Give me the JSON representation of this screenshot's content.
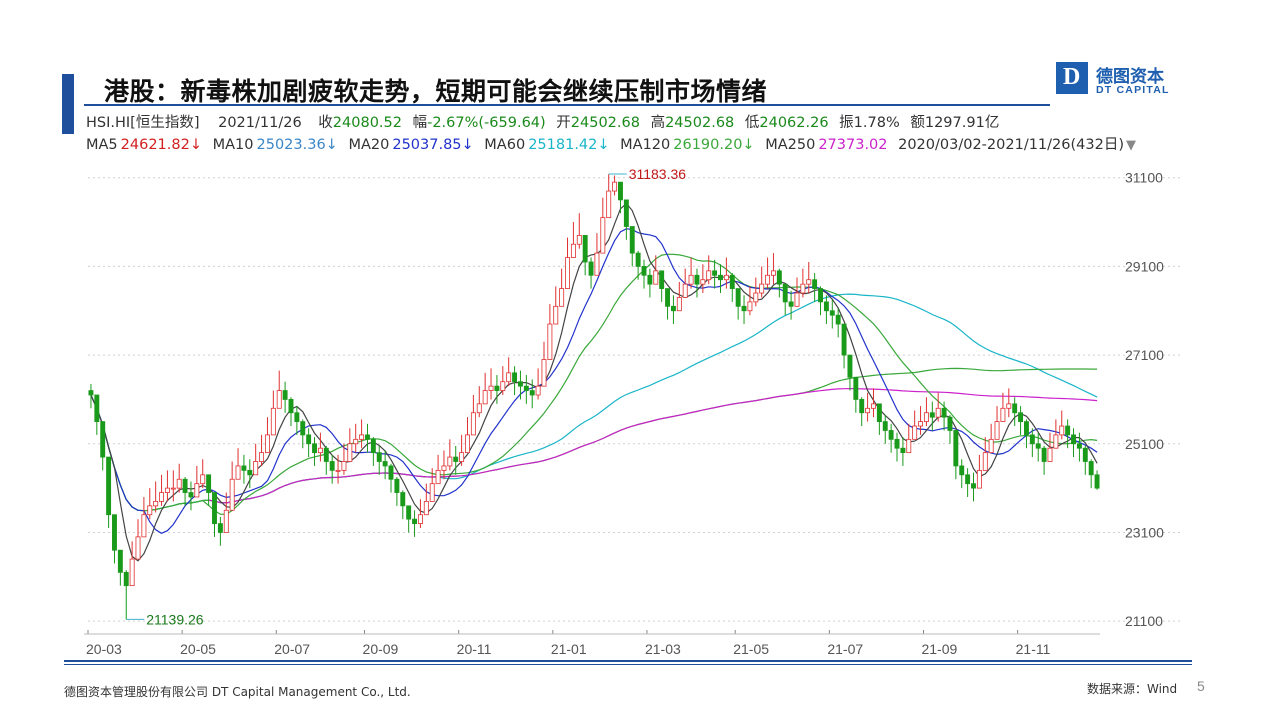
{
  "header": {
    "title": "港股：新毒株加剧疲软走势，短期可能会继续压制市场情绪",
    "logo_cn": "德图资本",
    "logo_en": "DT CAPITAL",
    "logo_letter": "D",
    "brand_color": "#1f4e9c"
  },
  "quote": {
    "symbol": "HSI.HI[恒生指数]",
    "date": "2021/11/26",
    "close_label": "收",
    "close": "24080.52",
    "change_label": "幅",
    "change": "-2.67%(-659.64)",
    "open_label": "开",
    "open": "24502.68",
    "high_label": "高",
    "high": "24502.68",
    "low_label": "低",
    "low": "24062.26",
    "amp_label": "振",
    "amp": "1.78%",
    "amount_label": "额",
    "amount": "1297.91亿"
  },
  "ma": {
    "ma5_label": "MA5",
    "ma5": "24621.82↓",
    "ma10_label": "MA10",
    "ma10": "25023.36↓",
    "ma20_label": "MA20",
    "ma20": "25037.85↓",
    "ma60_label": "MA60",
    "ma60": "25181.42↓",
    "ma120_label": "MA120",
    "ma120": "26190.20↓",
    "ma250_label": "MA250",
    "ma250": "27373.02",
    "range": "2020/03/02-2021/11/26(432日)",
    "range_arrow": "▼"
  },
  "footer": {
    "company": "德图资本管理股份有限公司  DT Capital Management  Co., Ltd.",
    "source": "数据来源：Wind",
    "page": "5"
  },
  "chart_data": {
    "type": "line",
    "ylim": [
      20900,
      31500
    ],
    "y_ticks": [
      "31100",
      "29100",
      "27100",
      "25100",
      "23100",
      "21100"
    ],
    "x_ticks": [
      "20-03",
      "20-05",
      "20-07",
      "20-09",
      "20-11",
      "21-01",
      "21-03",
      "21-05",
      "21-07",
      "21-09",
      "21-11"
    ],
    "annotations": [
      {
        "label": "31183.36",
        "x": "21-02",
        "y": 31183.36
      },
      {
        "label": "21139.26",
        "x": "20-03",
        "y": 21139.26
      }
    ],
    "colors": {
      "up": "#e03030",
      "down": "#1a9a1a",
      "ma5": "#444444",
      "ma10": "#2233cc",
      "ma20": "#3aa83a",
      "ma60": "#19b5c8",
      "ma120": "#3aa83a",
      "ma250": "#cc22cc"
    },
    "close": [
      26200,
      25600,
      24800,
      23500,
      22700,
      22200,
      21900,
      22500,
      23000,
      23500,
      23700,
      23800,
      24000,
      24100,
      24100,
      24300,
      24000,
      23900,
      24200,
      24400,
      24000,
      23300,
      23100,
      23600,
      24300,
      24600,
      24500,
      24400,
      24700,
      24900,
      25300,
      25900,
      26300,
      26100,
      25800,
      25600,
      25300,
      25100,
      24900,
      25000,
      24700,
      24500,
      24500,
      24700,
      25100,
      25200,
      25300,
      25200,
      24900,
      24700,
      24600,
      24300,
      24000,
      23700,
      23400,
      23300,
      23500,
      23800,
      24200,
      24500,
      24600,
      24800,
      24700,
      24900,
      25300,
      25800,
      26000,
      26300,
      26400,
      26300,
      26500,
      26700,
      26500,
      26400,
      26300,
      26200,
      26400,
      27000,
      27800,
      28200,
      28600,
      29300,
      29600,
      29800,
      29200,
      28900,
      29400,
      30200,
      30800,
      31000,
      30600,
      30000,
      29400,
      29100,
      28900,
      28700,
      29000,
      28600,
      28200,
      28100,
      28400,
      28700,
      28900,
      28700,
      28800,
      29000,
      28900,
      28800,
      28900,
      28600,
      28200,
      28100,
      28300,
      28500,
      28700,
      28900,
      29000,
      28700,
      28300,
      28200,
      28500,
      28700,
      28800,
      28600,
      28300,
      28100,
      28000,
      27800,
      27100,
      26600,
      26100,
      25800,
      25900,
      26000,
      25600,
      25400,
      25200,
      25000,
      24900,
      25200,
      25500,
      25600,
      25800,
      25700,
      25900,
      25700,
      25400,
      24600,
      24400,
      24200,
      24100,
      24500,
      24900,
      25200,
      25600,
      25900,
      26000,
      25800,
      25600,
      25300,
      25100,
      25000,
      24700,
      25000,
      25300,
      25500,
      25300,
      25100,
      25000,
      24700,
      24400,
      24100
    ],
    "high": [
      26450,
      25900,
      25100,
      23850,
      23150,
      22550,
      22250,
      22900,
      23400,
      23900,
      24100,
      24250,
      24400,
      24500,
      24500,
      24650,
      24350,
      24250,
      24600,
      24750,
      24400,
      23700,
      23450,
      24000,
      24700,
      25000,
      24850,
      24750,
      25100,
      25300,
      25700,
      26300,
      26750,
      26500,
      26150,
      25950,
      25650,
      25450,
      25250,
      25350,
      25050,
      24850,
      24850,
      25100,
      25450,
      25550,
      25650,
      25550,
      25250,
      25050,
      24950,
      24650,
      24350,
      24050,
      23700,
      23600,
      23850,
      24200,
      24550,
      24850,
      24950,
      25200,
      25050,
      25300,
      25700,
      26200,
      26400,
      26700,
      26800,
      26650,
      26850,
      27050,
      26850,
      26750,
      26650,
      26550,
      26800,
      27400,
      28250,
      28650,
      29050,
      29750,
      30100,
      30300,
      29650,
      29300,
      29850,
      30650,
      31183,
      31150,
      30950,
      30350,
      29750,
      29450,
      29250,
      29050,
      29350,
      29000,
      28550,
      28450,
      28750,
      29050,
      29300,
      29050,
      29150,
      29350,
      29250,
      29150,
      29300,
      28950,
      28550,
      28450,
      28650,
      28850,
      29100,
      29300,
      29400,
      29050,
      28650,
      28550,
      28850,
      29050,
      29200,
      28950,
      28650,
      28450,
      28350,
      28150,
      27500,
      27000,
      26500,
      26150,
      26250,
      26350,
      25950,
      25750,
      25550,
      25350,
      25250,
      25550,
      25850,
      25950,
      26150,
      26050,
      26250,
      26050,
      25750,
      24950,
      24750,
      24550,
      24450,
      24850,
      25250,
      25550,
      25950,
      26250,
      26350,
      26150,
      25950,
      25650,
      25450,
      25350,
      25050,
      25350,
      25650,
      25850,
      25650,
      25450,
      25350,
      25050,
      24750,
      24500
    ],
    "low": [
      25900,
      25300,
      24500,
      23200,
      22400,
      21900,
      21139,
      22200,
      22700,
      23200,
      23400,
      23550,
      23700,
      23800,
      23800,
      24000,
      23700,
      23600,
      23900,
      24100,
      23700,
      23000,
      22800,
      23300,
      24000,
      24300,
      24200,
      24100,
      24400,
      24600,
      25000,
      25600,
      26000,
      25800,
      25500,
      25300,
      25000,
      24800,
      24600,
      24700,
      24400,
      24200,
      24200,
      24400,
      24800,
      24900,
      25000,
      24900,
      24600,
      24400,
      24300,
      24000,
      23700,
      23400,
      23100,
      23000,
      23200,
      23500,
      23900,
      24200,
      24300,
      24500,
      24400,
      24600,
      25000,
      25500,
      25700,
      26000,
      26100,
      26000,
      26200,
      26400,
      26200,
      26100,
      26000,
      25900,
      26100,
      26700,
      27500,
      27900,
      28300,
      29000,
      29300,
      29500,
      28900,
      28600,
      29100,
      29900,
      30500,
      30700,
      30300,
      29700,
      29100,
      28800,
      28600,
      28400,
      28700,
      28300,
      27900,
      27800,
      28100,
      28400,
      28600,
      28400,
      28500,
      28700,
      28600,
      28500,
      28600,
      28300,
      27900,
      27800,
      28000,
      28200,
      28400,
      28600,
      28700,
      28400,
      28000,
      27900,
      28200,
      28400,
      28500,
      28300,
      28000,
      27800,
      27700,
      27500,
      26800,
      26300,
      25800,
      25500,
      25600,
      25700,
      25300,
      25100,
      24900,
      24700,
      24600,
      24900,
      25200,
      25300,
      25500,
      25400,
      25600,
      25400,
      25100,
      24300,
      24100,
      23900,
      23800,
      24200,
      24600,
      24900,
      25300,
      25600,
      25700,
      25500,
      25300,
      25000,
      24800,
      24700,
      24400,
      24700,
      25000,
      25200,
      25000,
      24800,
      24700,
      24400,
      24100,
      24062
    ]
  }
}
